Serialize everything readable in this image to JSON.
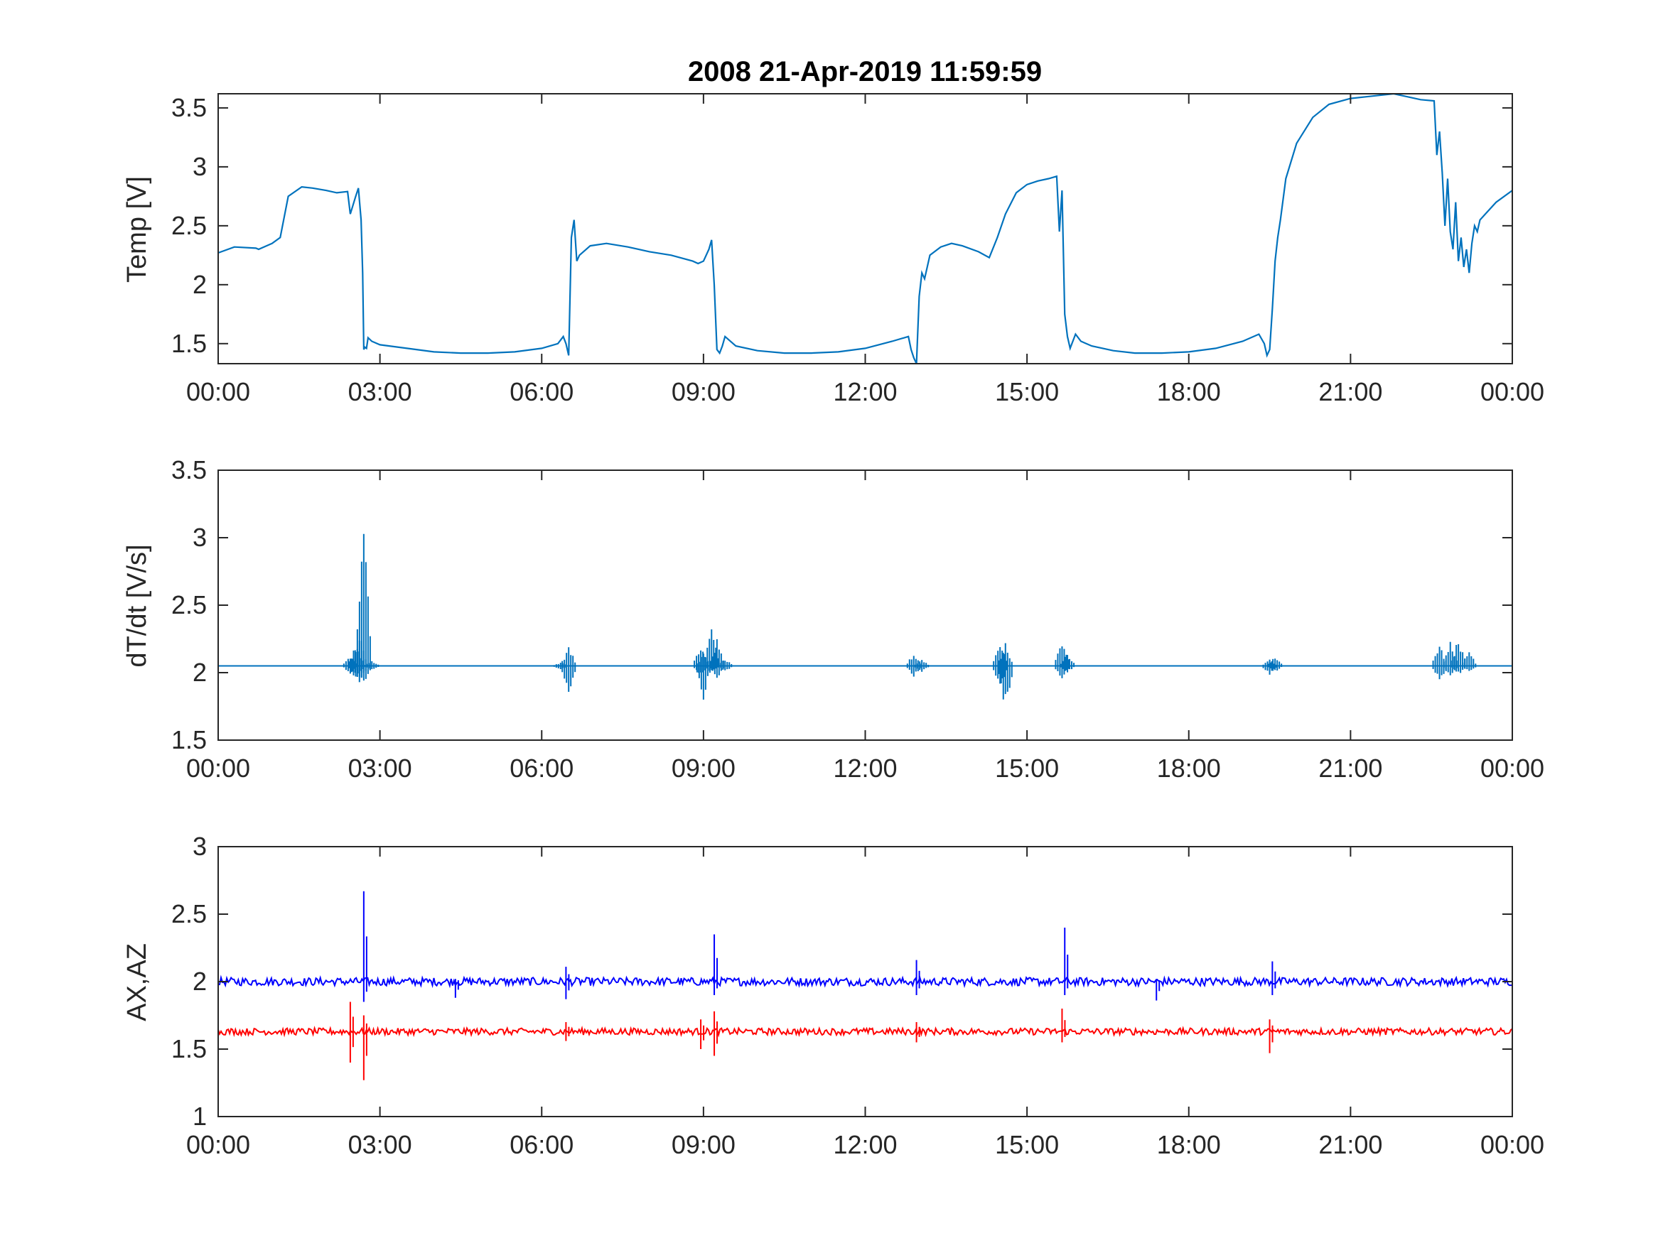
{
  "figure": {
    "title": "2008   21-Apr-2019 11:59:59",
    "colors": {
      "temp": "#0072BD",
      "ax": "#0000FF",
      "az": "#FF0000",
      "axis": "#262626"
    }
  },
  "chart_data": [
    {
      "type": "line",
      "title": "2008   21-Apr-2019 11:59:59",
      "xlabel": "",
      "ylabel": "Temp [V]",
      "x_unit": "hours",
      "xlim": [
        0,
        24
      ],
      "ylim": [
        1.33,
        3.62
      ],
      "x_ticks": [
        0,
        3,
        6,
        9,
        12,
        15,
        18,
        21,
        24
      ],
      "x_tick_labels": [
        "00:00",
        "03:00",
        "06:00",
        "09:00",
        "12:00",
        "15:00",
        "18:00",
        "21:00",
        "00:00"
      ],
      "y_ticks": [
        1.5,
        2,
        2.5,
        3,
        3.5
      ],
      "y_tick_labels": [
        "1.5",
        "2",
        "2.5",
        "3",
        "3.5"
      ],
      "grid": false,
      "series": [
        {
          "color": "#0072BD",
          "x": [
            0,
            0.3,
            0.7,
            0.75,
            1.0,
            1.15,
            1.3,
            1.55,
            1.75,
            2.0,
            2.2,
            2.4,
            2.45,
            2.55,
            2.6,
            2.65,
            2.68,
            2.7,
            2.72,
            2.75,
            2.78,
            2.85,
            3.0,
            3.5,
            4.0,
            4.5,
            5.0,
            5.5,
            6.0,
            6.3,
            6.4,
            6.45,
            6.5,
            6.55,
            6.6,
            6.65,
            6.7,
            6.9,
            7.2,
            7.6,
            8.0,
            8.4,
            8.8,
            8.9,
            9.0,
            9.1,
            9.15,
            9.2,
            9.25,
            9.3,
            9.35,
            9.4,
            9.6,
            10.0,
            10.5,
            11.0,
            11.5,
            12.0,
            12.5,
            12.8,
            12.85,
            12.9,
            12.95,
            13.0,
            13.05,
            13.1,
            13.2,
            13.4,
            13.6,
            13.8,
            14.1,
            14.3,
            14.45,
            14.6,
            14.8,
            15.0,
            15.2,
            15.4,
            15.55,
            15.6,
            15.65,
            15.7,
            15.75,
            15.8,
            15.9,
            16.0,
            16.2,
            16.6,
            17.0,
            17.5,
            18.0,
            18.5,
            19.0,
            19.3,
            19.4,
            19.45,
            19.5,
            19.55,
            19.6,
            19.65,
            19.7,
            19.8,
            20.0,
            20.3,
            20.6,
            21.0,
            21.4,
            21.8,
            22.0,
            22.3,
            22.55,
            22.6,
            22.65,
            22.7,
            22.75,
            22.8,
            22.85,
            22.9,
            22.95,
            23.0,
            23.05,
            23.1,
            23.15,
            23.2,
            23.25,
            23.3,
            23.35,
            23.4,
            23.5,
            23.7,
            24.0
          ],
          "y": [
            2.27,
            2.32,
            2.31,
            2.3,
            2.35,
            2.4,
            2.75,
            2.83,
            2.82,
            2.8,
            2.78,
            2.79,
            2.6,
            2.75,
            2.82,
            2.55,
            2.1,
            1.45,
            1.47,
            1.46,
            1.55,
            1.52,
            1.49,
            1.46,
            1.43,
            1.42,
            1.42,
            1.43,
            1.46,
            1.5,
            1.56,
            1.5,
            1.4,
            2.4,
            2.55,
            2.2,
            2.25,
            2.33,
            2.35,
            2.32,
            2.28,
            2.25,
            2.2,
            2.18,
            2.2,
            2.3,
            2.38,
            2.0,
            1.45,
            1.42,
            1.48,
            1.56,
            1.48,
            1.44,
            1.42,
            1.42,
            1.43,
            1.46,
            1.52,
            1.56,
            1.45,
            1.38,
            1.33,
            1.9,
            2.1,
            2.05,
            2.25,
            2.32,
            2.35,
            2.33,
            2.28,
            2.23,
            2.4,
            2.6,
            2.78,
            2.85,
            2.88,
            2.9,
            2.92,
            2.45,
            2.8,
            1.75,
            1.56,
            1.46,
            1.58,
            1.52,
            1.48,
            1.44,
            1.42,
            1.42,
            1.43,
            1.46,
            1.52,
            1.58,
            1.5,
            1.4,
            1.45,
            1.8,
            2.2,
            2.4,
            2.55,
            2.9,
            3.2,
            3.42,
            3.53,
            3.58,
            3.6,
            3.62,
            3.6,
            3.57,
            3.56,
            3.1,
            3.3,
            2.95,
            2.5,
            2.9,
            2.45,
            2.3,
            2.7,
            2.2,
            2.4,
            2.15,
            2.3,
            2.1,
            2.35,
            2.5,
            2.45,
            2.55,
            2.6,
            2.7,
            2.8
          ]
        }
      ]
    },
    {
      "type": "line",
      "title": "",
      "xlabel": "",
      "ylabel": "dT/dt [V/s]",
      "x_unit": "hours",
      "xlim": [
        0,
        24
      ],
      "ylim": [
        1.5,
        3.5
      ],
      "x_ticks": [
        0,
        3,
        6,
        9,
        12,
        15,
        18,
        21,
        24
      ],
      "x_tick_labels": [
        "00:00",
        "03:00",
        "06:00",
        "09:00",
        "12:00",
        "15:00",
        "18:00",
        "21:00",
        "00:00"
      ],
      "y_ticks": [
        1.5,
        2,
        2.5,
        3,
        3.5
      ],
      "y_tick_labels": [
        "1.5",
        "2",
        "2.5",
        "3",
        "3.5"
      ],
      "grid": false,
      "baseline": 2.05,
      "series": [
        {
          "color": "#0072BD",
          "bursts": [
            {
              "x": 2.45,
              "high": 2.13,
              "low": 1.99
            },
            {
              "x": 2.55,
              "high": 2.21,
              "low": 1.95
            },
            {
              "x": 2.62,
              "high": 2.3,
              "low": 1.9
            },
            {
              "x": 2.7,
              "high": 3.22,
              "low": 1.88
            },
            {
              "x": 2.85,
              "high": 2.09,
              "low": 2.01
            },
            {
              "x": 6.35,
              "high": 2.08,
              "low": 2.02
            },
            {
              "x": 6.5,
              "high": 2.2,
              "low": 1.83
            },
            {
              "x": 8.95,
              "high": 2.23,
              "low": 1.98
            },
            {
              "x": 9.0,
              "high": 2.15,
              "low": 1.8
            },
            {
              "x": 9.15,
              "high": 2.36,
              "low": 2.0
            },
            {
              "x": 9.25,
              "high": 2.25,
              "low": 1.95
            },
            {
              "x": 9.4,
              "high": 2.11,
              "low": 2.0
            },
            {
              "x": 12.9,
              "high": 2.15,
              "low": 1.97
            },
            {
              "x": 13.05,
              "high": 2.1,
              "low": 2.0
            },
            {
              "x": 14.5,
              "high": 2.23,
              "low": 1.88
            },
            {
              "x": 14.6,
              "high": 2.22,
              "low": 1.71
            },
            {
              "x": 15.65,
              "high": 2.25,
              "low": 1.95
            },
            {
              "x": 15.75,
              "high": 2.15,
              "low": 2.0
            },
            {
              "x": 19.5,
              "high": 2.1,
              "low": 1.98
            },
            {
              "x": 19.6,
              "high": 2.13,
              "low": 2.0
            },
            {
              "x": 22.65,
              "high": 2.22,
              "low": 1.93
            },
            {
              "x": 22.85,
              "high": 2.23,
              "low": 1.97
            },
            {
              "x": 23.0,
              "high": 2.27,
              "low": 1.98
            },
            {
              "x": 23.2,
              "high": 2.16,
              "low": 2.0
            }
          ]
        }
      ]
    },
    {
      "type": "line",
      "title": "",
      "xlabel": "",
      "ylabel": "AX,AZ",
      "x_unit": "hours",
      "xlim": [
        0,
        24
      ],
      "ylim": [
        1,
        3
      ],
      "x_ticks": [
        0,
        3,
        6,
        9,
        12,
        15,
        18,
        21,
        24
      ],
      "x_tick_labels": [
        "00:00",
        "03:00",
        "06:00",
        "09:00",
        "12:00",
        "15:00",
        "18:00",
        "21:00",
        "00:00"
      ],
      "y_ticks": [
        1,
        1.5,
        2,
        2.5,
        3
      ],
      "y_tick_labels": [
        "1",
        "1.5",
        "2",
        "2.5",
        "3"
      ],
      "grid": false,
      "series": [
        {
          "color": "#0000FF",
          "baseline": 2.0,
          "noise": 0.03,
          "spikes": [
            {
              "x": 2.7,
              "high": 2.67,
              "low": 1.85
            },
            {
              "x": 4.4,
              "high": 2.02,
              "low": 1.88
            },
            {
              "x": 6.45,
              "high": 2.11,
              "low": 1.87
            },
            {
              "x": 9.2,
              "high": 2.35,
              "low": 1.9
            },
            {
              "x": 12.95,
              "high": 2.16,
              "low": 1.9
            },
            {
              "x": 15.7,
              "high": 2.4,
              "low": 1.9
            },
            {
              "x": 17.4,
              "high": 2.02,
              "low": 1.86
            },
            {
              "x": 19.55,
              "high": 2.15,
              "low": 1.9
            }
          ]
        },
        {
          "color": "#FF0000",
          "baseline": 1.63,
          "noise": 0.025,
          "spikes": [
            {
              "x": 2.45,
              "high": 1.85,
              "low": 1.4
            },
            {
              "x": 2.7,
              "high": 1.75,
              "low": 1.27
            },
            {
              "x": 6.45,
              "high": 1.7,
              "low": 1.56
            },
            {
              "x": 8.95,
              "high": 1.72,
              "low": 1.5
            },
            {
              "x": 9.2,
              "high": 1.78,
              "low": 1.45
            },
            {
              "x": 12.95,
              "high": 1.7,
              "low": 1.55
            },
            {
              "x": 15.65,
              "high": 1.8,
              "low": 1.55
            },
            {
              "x": 19.5,
              "high": 1.72,
              "low": 1.47
            }
          ]
        }
      ]
    }
  ]
}
